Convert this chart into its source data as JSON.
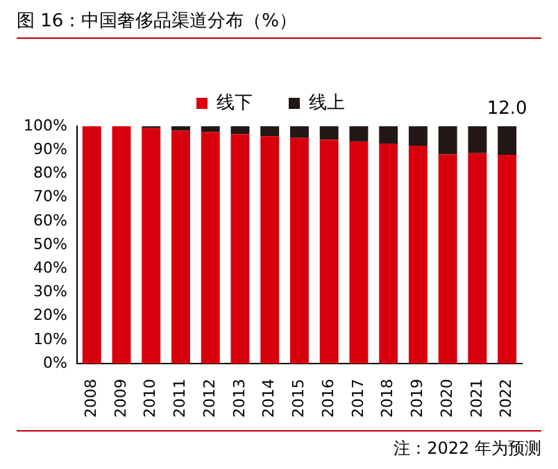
{
  "chart_data": {
    "type": "bar",
    "title": "图 16：中国奢侈品渠道分布（%）",
    "categories": [
      "2008",
      "2009",
      "2010",
      "2011",
      "2012",
      "2013",
      "2014",
      "2015",
      "2016",
      "2017",
      "2018",
      "2019",
      "2020",
      "2021",
      "2022"
    ],
    "stacked": true,
    "series": [
      {
        "name": "线下",
        "color": "#d9000d",
        "values": [
          100,
          100,
          99.2,
          98.2,
          97.6,
          96.7,
          95.8,
          95.1,
          94.4,
          93.6,
          92.7,
          91.8,
          88.2,
          88.7,
          88.0
        ]
      },
      {
        "name": "线上",
        "color": "#231815",
        "values": [
          0,
          0,
          0.8,
          1.8,
          2.4,
          3.3,
          4.2,
          4.9,
          5.6,
          6.4,
          7.3,
          8.2,
          11.8,
          11.3,
          12.0
        ],
        "value_labels": [
          null,
          null,
          null,
          null,
          null,
          null,
          null,
          null,
          null,
          null,
          null,
          null,
          null,
          null,
          "12.0"
        ]
      }
    ],
    "ylim": [
      0,
      100
    ],
    "yticks": [
      {
        "value": 0,
        "label": "0%"
      },
      {
        "value": 10,
        "label": "10%"
      },
      {
        "value": 20,
        "label": "20%"
      },
      {
        "value": 30,
        "label": "30%"
      },
      {
        "value": 40,
        "label": "40%"
      },
      {
        "value": 50,
        "label": "50%"
      },
      {
        "value": 60,
        "label": "60%"
      },
      {
        "value": 70,
        "label": "70%"
      },
      {
        "value": 80,
        "label": "80%"
      },
      {
        "value": 90,
        "label": "90%"
      },
      {
        "value": 100,
        "label": "100%"
      }
    ],
    "legend": "top",
    "grid": false,
    "annotations": [
      "注：2022 年为预测"
    ]
  }
}
